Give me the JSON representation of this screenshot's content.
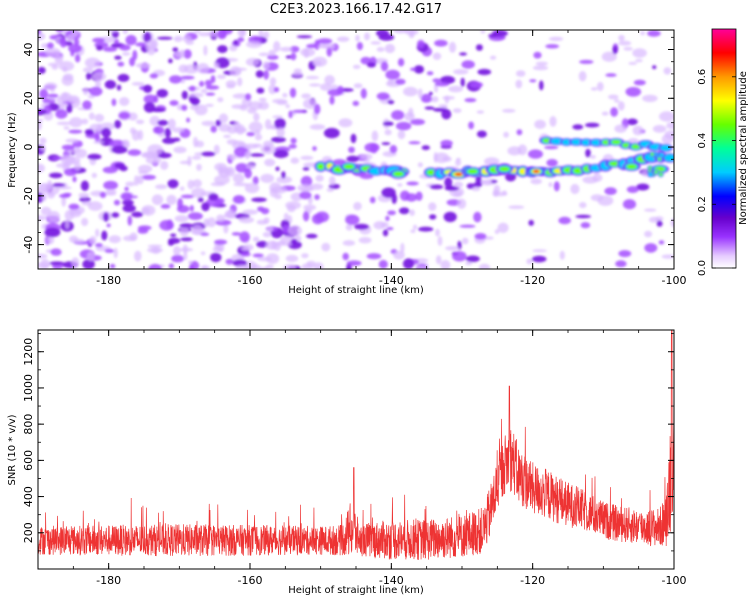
{
  "title": "C2E3.2023.166.17.42.G17",
  "chart_data": [
    {
      "type": "heatmap",
      "xlabel": "Height of straight line (km)",
      "ylabel": "Frequency (Hz)",
      "xlim": [
        -190,
        -100
      ],
      "ylim": [
        -50,
        48
      ],
      "xticks": [
        -180,
        -160,
        -140,
        -120,
        -100
      ],
      "yticks": [
        -40,
        -20,
        0,
        20,
        40
      ],
      "grid": false,
      "colorbar": {
        "label": "Normalized spectral amplitude",
        "range": [
          0,
          0.75
        ],
        "ticks": [
          0.0,
          0.2,
          0.4,
          0.6
        ],
        "colors": [
          "#ffffff",
          "#e6ccff",
          "#9933ff",
          "#6600cc",
          "#0000ff",
          "#00ccff",
          "#00ff99",
          "#66ff00",
          "#ffff00",
          "#ff9900",
          "#ff0000",
          "#ff0099"
        ]
      },
      "ridge": {
        "description_points": [
          [
            -150,
            -8
          ],
          [
            -145,
            -9
          ],
          [
            -140,
            -10
          ],
          [
            -137,
            -11
          ],
          [
            -133,
            -11
          ],
          [
            -128,
            -10
          ],
          [
            -123,
            -9
          ],
          [
            -118,
            -10
          ],
          [
            -113,
            -9
          ],
          [
            -108,
            -7
          ],
          [
            -104,
            -5
          ],
          [
            -101,
            -4
          ]
        ],
        "upper_branch": [
          [
            -118,
            3
          ],
          [
            -112,
            2
          ],
          [
            -106,
            1
          ],
          [
            -101,
            0
          ]
        ]
      }
    },
    {
      "type": "line",
      "xlabel": "Height of straight line (km)",
      "ylabel": "SNR (10 * v/v)",
      "xlim": [
        -190,
        -100
      ],
      "ylim": [
        0,
        1320
      ],
      "xticks": [
        -180,
        -160,
        -140,
        -120,
        -100
      ],
      "yticks": [
        200,
        400,
        600,
        800,
        1000,
        1200
      ],
      "color": "#ee3333",
      "grid": false,
      "envelope": {
        "x": [
          -190,
          -180,
          -170,
          -160,
          -150,
          -147,
          -145.5,
          -144.5,
          -143,
          -140,
          -135,
          -130,
          -127,
          -126,
          -125,
          -124,
          -123,
          -122,
          -120,
          -118,
          -116,
          -114,
          -112,
          -110,
          -108,
          -106,
          -104,
          -102,
          -101,
          -100.5,
          -100
        ],
        "base": [
          150,
          150,
          150,
          150,
          150,
          150,
          210,
          150,
          150,
          150,
          150,
          170,
          200,
          300,
          450,
          560,
          600,
          500,
          430,
          400,
          360,
          330,
          300,
          260,
          240,
          230,
          220,
          220,
          260,
          500,
          600
        ],
        "amp": [
          160,
          170,
          180,
          170,
          160,
          170,
          340,
          170,
          200,
          220,
          230,
          240,
          260,
          300,
          300,
          330,
          380,
          330,
          290,
          280,
          260,
          240,
          220,
          210,
          200,
          200,
          200,
          220,
          300,
          700,
          400
        ]
      },
      "peaks": [
        {
          "x": -123.3,
          "y": 1010
        },
        {
          "x": -145.3,
          "y": 560
        },
        {
          "x": -100.3,
          "y": 1320
        }
      ]
    }
  ]
}
